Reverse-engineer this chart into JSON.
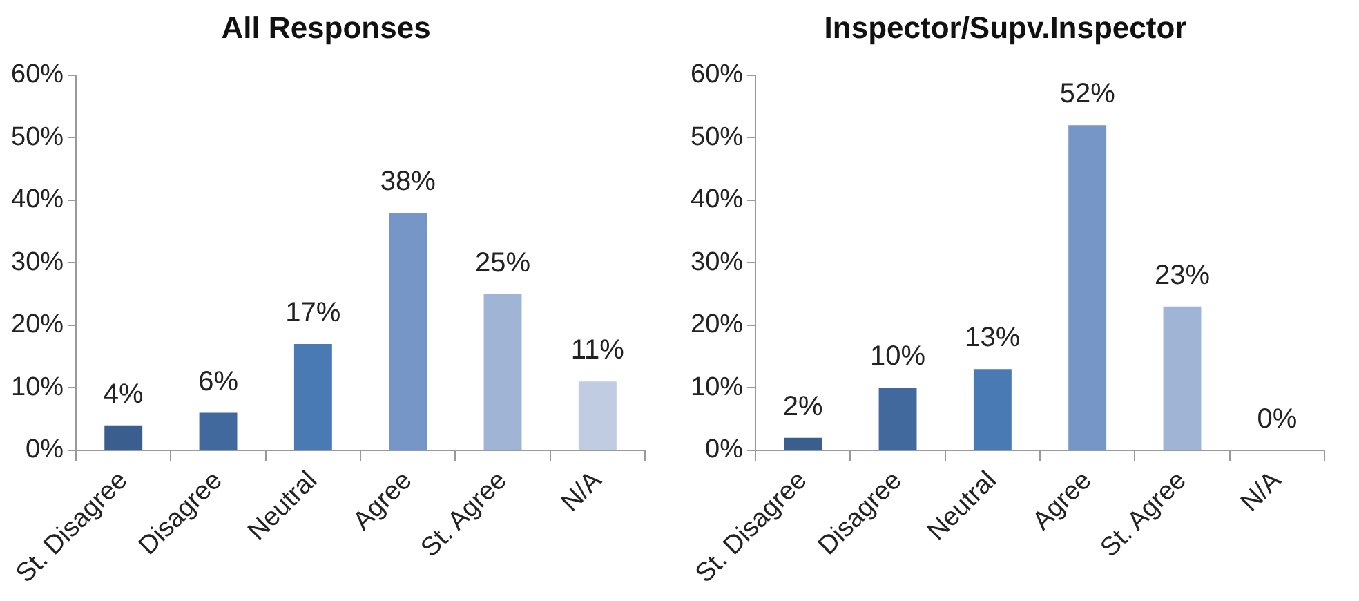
{
  "chart_data": [
    {
      "type": "bar",
      "title": "All Responses",
      "categories": [
        "St. Disagree",
        "Disagree",
        "Neutral",
        "Agree",
        "St. Agree",
        "N/A"
      ],
      "values": [
        4,
        6,
        17,
        38,
        25,
        11
      ],
      "colors": [
        "#3a5f8f",
        "#41699e",
        "#4a7ab4",
        "#7596c6",
        "#a0b4d6",
        "#c0cce2"
      ],
      "value_labels": [
        "4%",
        "6%",
        "17%",
        "38%",
        "25%",
        "11%"
      ],
      "ylim": [
        0,
        60
      ],
      "yticks": [
        {
          "value": 0,
          "label": "0%"
        },
        {
          "value": 10,
          "label": "10%"
        },
        {
          "value": 20,
          "label": "20%"
        },
        {
          "value": 30,
          "label": "30%"
        },
        {
          "value": 40,
          "label": "40%"
        },
        {
          "value": 50,
          "label": "50%"
        },
        {
          "value": 60,
          "label": "60%"
        }
      ],
      "grid": false,
      "legend": false
    },
    {
      "type": "bar",
      "title": "Inspector/Supv.Inspector",
      "categories": [
        "St. Disagree",
        "Disagree",
        "Neutral",
        "Agree",
        "St. Agree",
        "N/A"
      ],
      "values": [
        2,
        10,
        13,
        52,
        23,
        0
      ],
      "colors": [
        "#3a5f8f",
        "#41699e",
        "#4a7ab4",
        "#7596c6",
        "#a0b4d6",
        "#c0cce2"
      ],
      "value_labels": [
        "2%",
        "10%",
        "13%",
        "52%",
        "23%",
        "0%"
      ],
      "ylim": [
        0,
        60
      ],
      "yticks": [
        {
          "value": 0,
          "label": "0%"
        },
        {
          "value": 10,
          "label": "10%"
        },
        {
          "value": 20,
          "label": "20%"
        },
        {
          "value": 30,
          "label": "30%"
        },
        {
          "value": 40,
          "label": "40%"
        },
        {
          "value": 50,
          "label": "50%"
        },
        {
          "value": 60,
          "label": "60%"
        }
      ],
      "grid": false,
      "legend": false
    }
  ]
}
